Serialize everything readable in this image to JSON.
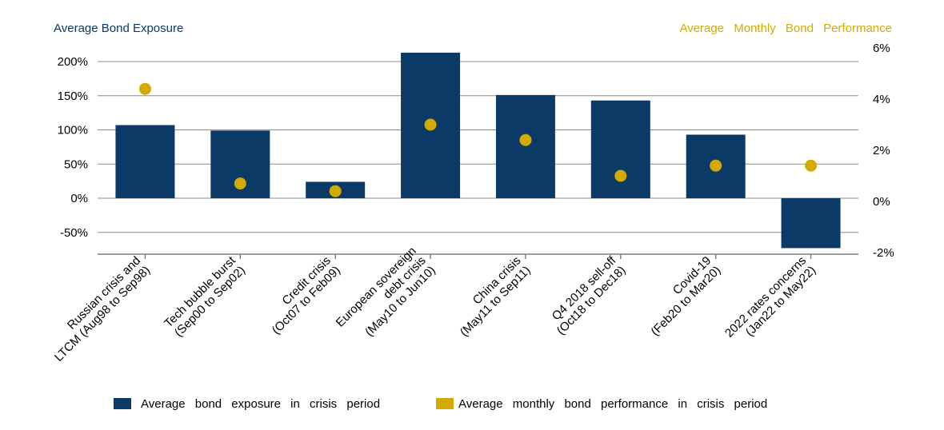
{
  "chart_data": {
    "type": "bar",
    "left_axis_title": "Average Bond Exposure",
    "right_axis_title": "Average Monthly Bond Performance",
    "categories": [
      [
        "Russian crisis and",
        "LTCM (Aug98 to Sep98)"
      ],
      [
        "Tech bubble burst",
        "(Sep00 to Sep02)"
      ],
      [
        "Credit crisis",
        "(Oct07 to Feb09)"
      ],
      [
        "European sovereign",
        "debt crisis",
        "(May10 to Jun10)"
      ],
      [
        "China crisis",
        "(May11 to Sep11)"
      ],
      [
        "Q4 2018 sell-off",
        "(Oct18 to Dec18)"
      ],
      [
        "Covid-19",
        "(Feb20 to Mar20)"
      ],
      [
        "2022 rates concerns",
        "(Jan22 to May22)"
      ]
    ],
    "series": [
      {
        "name": "Average bond exposure in crisis period",
        "kind": "bar",
        "axis": "left",
        "color": "#0b3a67",
        "values": [
          107,
          99,
          24,
          213,
          151,
          143,
          93,
          -73
        ]
      },
      {
        "name": "Average monthly bond performance in crisis period",
        "kind": "point",
        "axis": "right",
        "color": "#d4aa00",
        "values": [
          4.4,
          0.7,
          0.4,
          3.0,
          2.4,
          1.0,
          1.4,
          1.4
        ]
      }
    ],
    "left_axis": {
      "ylim": [
        -80,
        220
      ],
      "ticks": [
        "200%",
        "150%",
        "100%",
        "50%",
        "0%",
        "-50%"
      ],
      "tick_values": [
        200,
        150,
        100,
        50,
        0,
        -50
      ]
    },
    "right_axis": {
      "ylim": [
        -2,
        6
      ],
      "ticks": [
        "6%",
        "4%",
        "2%",
        "0%",
        "-2%"
      ],
      "tick_values": [
        6,
        4,
        2,
        0,
        -2
      ]
    },
    "grid": true,
    "legend_position": "bottom"
  }
}
